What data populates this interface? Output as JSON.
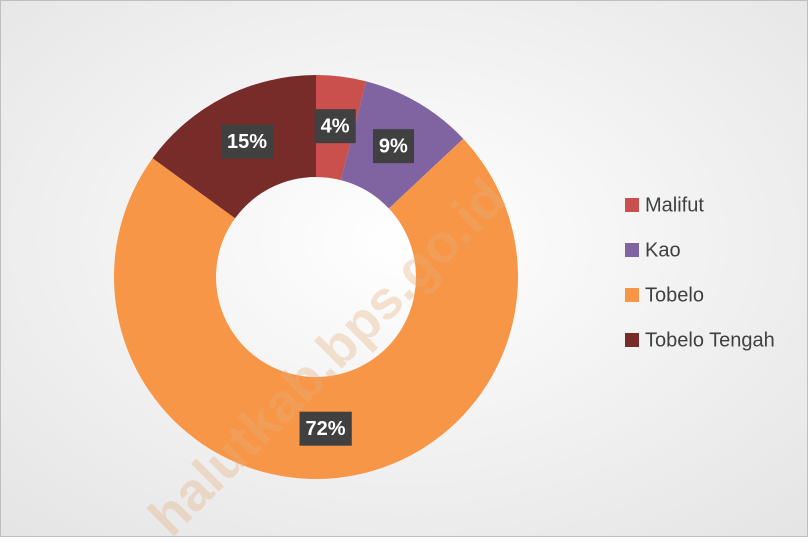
{
  "chart_data": {
    "type": "donut",
    "categories": [
      "Malifut",
      "Kao",
      "Tobelo",
      "Tobelo Tengah"
    ],
    "values": [
      4,
      9,
      72,
      15
    ],
    "value_labels": [
      "4%",
      "9%",
      "72%",
      "15%"
    ],
    "colors": [
      "#c9504c",
      "#8064a2",
      "#f79646",
      "#772c2a"
    ],
    "legend": "right",
    "watermark": "halutkab.bps.go.id"
  }
}
